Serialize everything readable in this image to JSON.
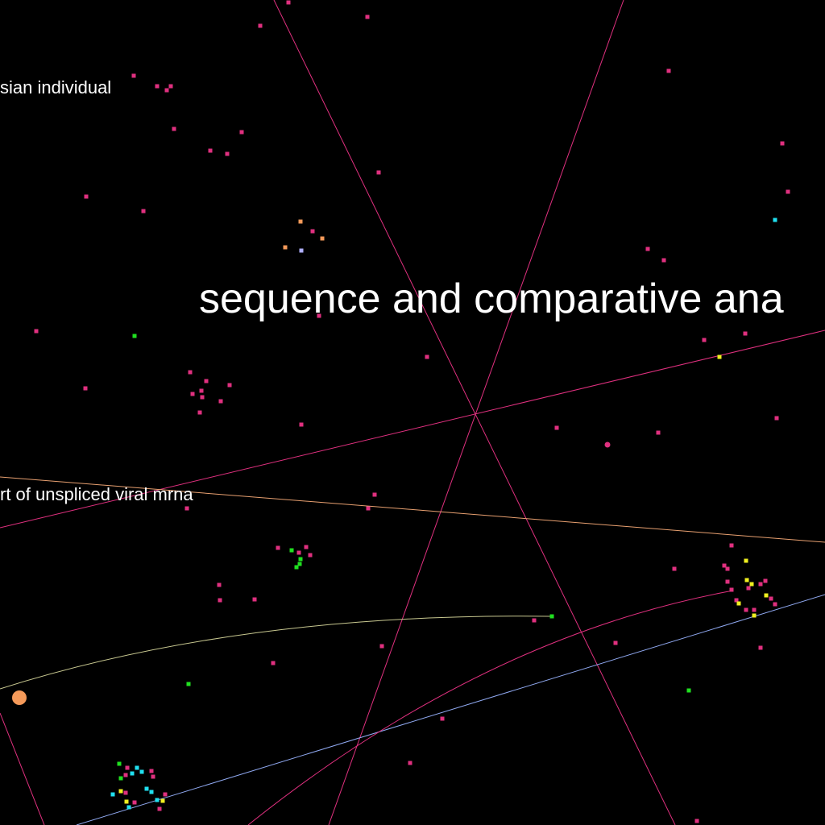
{
  "labels": [
    "sian individual",
    "sequence and comparative ana",
    "rt of unspliced viral mrna"
  ]
}
